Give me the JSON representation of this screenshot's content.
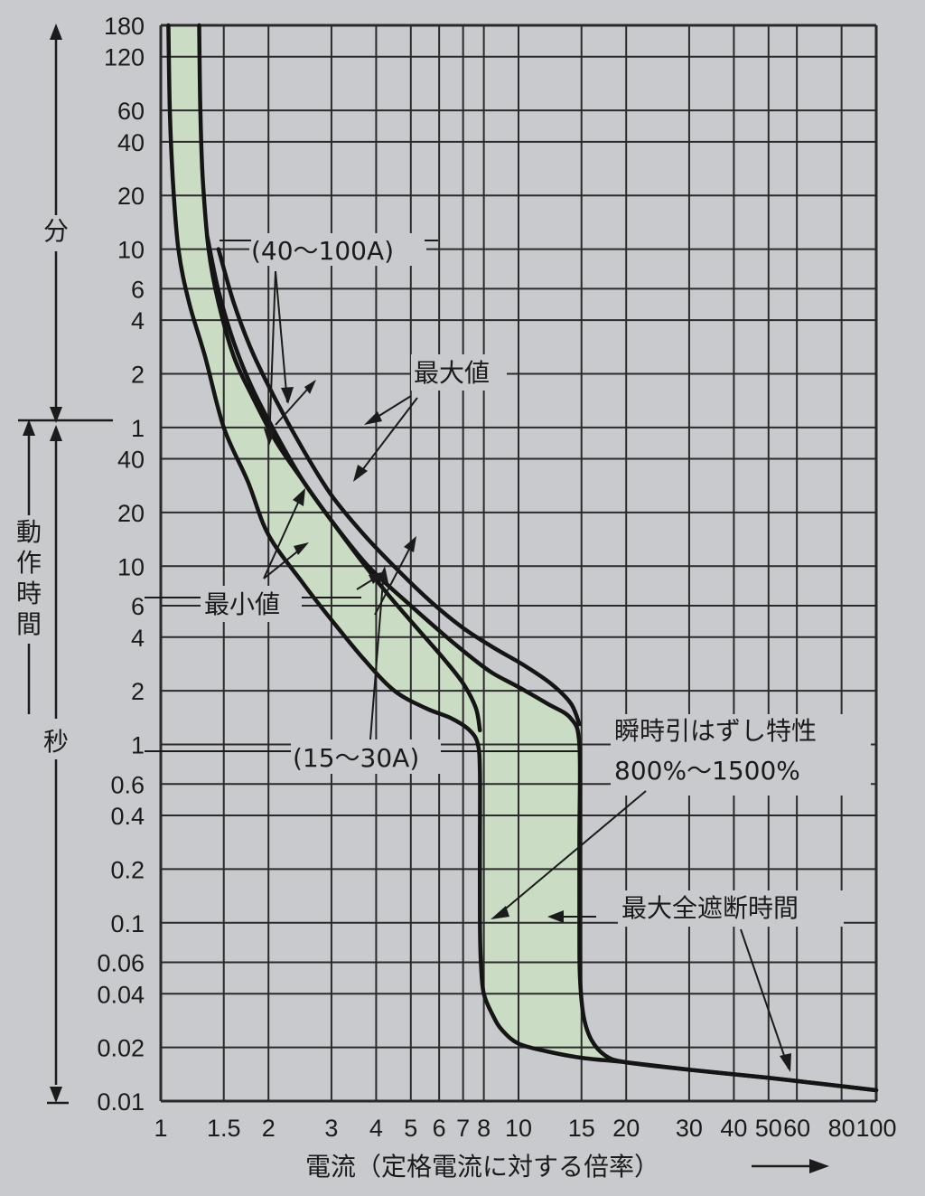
{
  "chart_data": {
    "type": "line",
    "xlabel": "電流（定格電流に対する倍率）",
    "x_scale": "log",
    "xlim": [
      1,
      100
    ],
    "x_ticks": [
      {
        "value": 1,
        "label": "1"
      },
      {
        "value": 1.5,
        "label": "1.5"
      },
      {
        "value": 2,
        "label": "2"
      },
      {
        "value": 3,
        "label": "3"
      },
      {
        "value": 4,
        "label": "4"
      },
      {
        "value": 5,
        "label": "5"
      },
      {
        "value": 6,
        "label": "6"
      },
      {
        "value": 7,
        "label": "7"
      },
      {
        "value": 8,
        "label": "8"
      },
      {
        "value": 10,
        "label": "10"
      },
      {
        "value": 15,
        "label": "15"
      },
      {
        "value": 20,
        "label": "20"
      },
      {
        "value": 30,
        "label": "30"
      },
      {
        "value": 40,
        "label": "40"
      },
      {
        "value": 50,
        "label": "50"
      },
      {
        "value": 60,
        "label": "60"
      },
      {
        "value": 80,
        "label": "80"
      },
      {
        "value": 100,
        "label": "100"
      }
    ],
    "ylabel": "動作時間",
    "y_scale": "log",
    "y_unit_sections": [
      {
        "label": "分",
        "range_seconds": [
          60,
          10800
        ]
      },
      {
        "label": "秒",
        "range_seconds": [
          0.01,
          60
        ]
      }
    ],
    "ylim_seconds": [
      0.01,
      10800
    ],
    "y_ticks": [
      {
        "seconds": 10800,
        "label": "180"
      },
      {
        "seconds": 7200,
        "label": "120"
      },
      {
        "seconds": 3600,
        "label": "60"
      },
      {
        "seconds": 2400,
        "label": "40"
      },
      {
        "seconds": 1200,
        "label": "20"
      },
      {
        "seconds": 600,
        "label": "10"
      },
      {
        "seconds": 360,
        "label": "6"
      },
      {
        "seconds": 240,
        "label": "4"
      },
      {
        "seconds": 120,
        "label": "2"
      },
      {
        "seconds": 60,
        "label": "1"
      },
      {
        "seconds": 40,
        "label": "40"
      },
      {
        "seconds": 20,
        "label": "20"
      },
      {
        "seconds": 10,
        "label": "10"
      },
      {
        "seconds": 6,
        "label": "6"
      },
      {
        "seconds": 4,
        "label": "4"
      },
      {
        "seconds": 2,
        "label": "2"
      },
      {
        "seconds": 1,
        "label": "1"
      },
      {
        "seconds": 0.6,
        "label": "0.6"
      },
      {
        "seconds": 0.4,
        "label": "0.4"
      },
      {
        "seconds": 0.2,
        "label": "0.2"
      },
      {
        "seconds": 0.1,
        "label": "0.1"
      },
      {
        "seconds": 0.06,
        "label": "0.06"
      },
      {
        "seconds": 0.04,
        "label": "0.04"
      },
      {
        "seconds": 0.02,
        "label": "0.02"
      },
      {
        "seconds": 0.01,
        "label": "0.01"
      }
    ],
    "grid": true,
    "series": [
      {
        "key": "min_outer",
        "x": [
          1.05,
          1.06,
          1.08,
          1.12,
          1.2,
          1.33,
          1.5,
          1.75,
          2.0,
          2.5,
          3.0,
          3.7,
          4.5,
          5.5,
          6.5,
          7.3,
          7.7,
          7.8,
          7.8,
          7.8,
          7.85,
          8.0,
          8.5,
          9.0,
          10.0,
          12.0,
          15.0,
          20.0,
          30.0,
          50.0,
          70.0,
          100.0
        ],
        "y": [
          10800,
          3600,
          1500,
          600,
          300,
          150,
          60,
          30,
          15,
          8,
          5,
          3,
          2,
          1.6,
          1.4,
          1.2,
          1.0,
          0.7,
          0.3,
          0.1,
          0.06,
          0.04,
          0.03,
          0.025,
          0.021,
          0.019,
          0.0175,
          0.0165,
          0.015,
          0.0135,
          0.0125,
          0.0115
        ]
      },
      {
        "key": "max_outer",
        "x": [
          1.28,
          1.29,
          1.31,
          1.36,
          1.45,
          1.6,
          1.8,
          2.1,
          2.5,
          3.0,
          3.8,
          5.0,
          6.3,
          7.5,
          8.5,
          10.0,
          12.0,
          14.0,
          14.8,
          14.8,
          14.8,
          14.85,
          15.2,
          16.0,
          17.5,
          20.0,
          30.0,
          50.0,
          70.0,
          100.0
        ],
        "y": [
          10800,
          3600,
          1500,
          600,
          300,
          150,
          90,
          50,
          30,
          18,
          10,
          6,
          4,
          3,
          2.5,
          2.1,
          1.7,
          1.4,
          1.0,
          0.3,
          0.1,
          0.05,
          0.03,
          0.022,
          0.018,
          0.0165,
          0.015,
          0.0135,
          0.0125,
          0.0115
        ]
      },
      {
        "key": "inner_15_30",
        "x": [
          1.35,
          1.45,
          1.6,
          1.8,
          2.1,
          2.5,
          3.0,
          3.6,
          4.3,
          5.2,
          6.2,
          7.0,
          7.6,
          7.8
        ],
        "y": [
          700,
          350,
          180,
          100,
          55,
          30,
          18,
          11,
          7,
          4.5,
          3,
          2.2,
          1.6,
          1.2
        ]
      },
      {
        "key": "inner_40_100",
        "x": [
          1.45,
          1.6,
          1.8,
          2.1,
          2.5,
          3.0,
          3.7,
          4.6,
          5.7,
          7.0,
          8.5,
          10.3,
          12.3,
          14.0,
          14.8
        ],
        "y": [
          600,
          300,
          160,
          85,
          45,
          25,
          15,
          9.5,
          6.3,
          4.5,
          3.5,
          2.8,
          2.2,
          1.7,
          1.3
        ]
      }
    ],
    "band_fill_color": "#cbdcc4",
    "curve_color": "#151515",
    "grid_color": "#2a2a2a",
    "annotations": [
      {
        "key": "range_40_100",
        "text": "(40～100A)"
      },
      {
        "key": "max_value",
        "text": "最大値"
      },
      {
        "key": "min_value",
        "text": "最小値"
      },
      {
        "key": "range_15_30",
        "text": "(15～30A)"
      },
      {
        "key": "instant_trip_title",
        "text": "瞬時引はずし特性"
      },
      {
        "key": "instant_trip_range",
        "text": "800%～1500%"
      },
      {
        "key": "max_total_clearing",
        "text": "最大全遮断時間"
      }
    ],
    "x_arrow": "→"
  }
}
